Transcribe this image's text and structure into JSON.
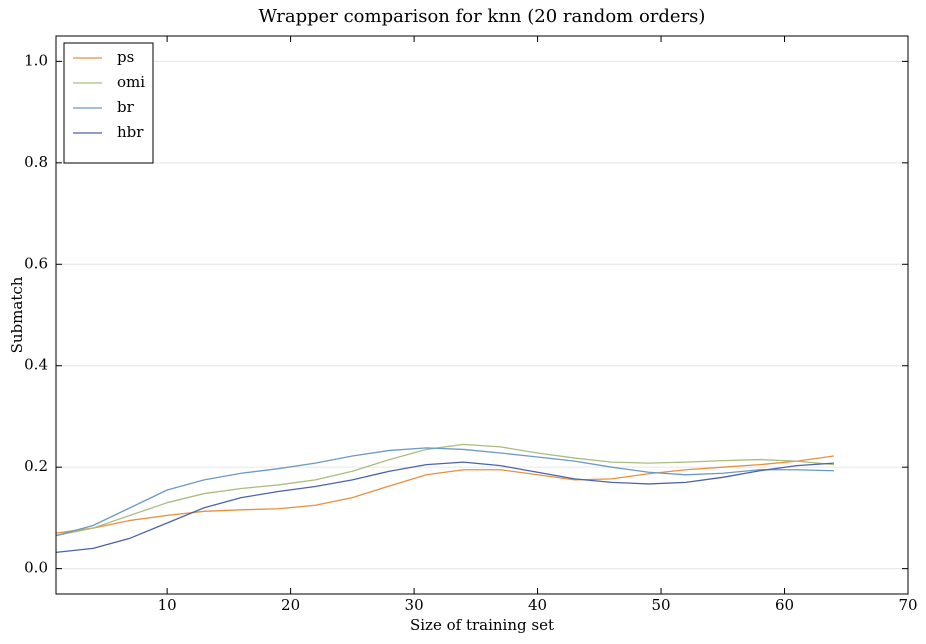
{
  "chart_data": {
    "type": "line",
    "title": "Wrapper comparison for knn (20 random orders)",
    "x_label": "Size of training set",
    "y_label": "Submatch",
    "x": [
      1,
      4,
      7,
      10,
      13,
      16,
      19,
      22,
      25,
      28,
      31,
      34,
      37,
      40,
      43,
      46,
      49,
      52,
      55,
      58,
      61,
      64
    ],
    "series": [
      {
        "name": "ps",
        "color": "#e8913d",
        "values": [
          0.07,
          0.08,
          0.095,
          0.105,
          0.113,
          0.116,
          0.118,
          0.125,
          0.14,
          0.163,
          0.185,
          0.195,
          0.195,
          0.185,
          0.175,
          0.177,
          0.187,
          0.195,
          0.2,
          0.205,
          0.212,
          0.222
        ]
      },
      {
        "name": "omi",
        "color": "#a9bd7e",
        "values": [
          0.065,
          0.08,
          0.105,
          0.13,
          0.148,
          0.158,
          0.165,
          0.175,
          0.192,
          0.215,
          0.235,
          0.245,
          0.24,
          0.228,
          0.218,
          0.21,
          0.208,
          0.21,
          0.213,
          0.215,
          0.212,
          0.205
        ]
      },
      {
        "name": "br",
        "color": "#6b9ac4",
        "values": [
          0.065,
          0.085,
          0.12,
          0.155,
          0.175,
          0.188,
          0.197,
          0.208,
          0.222,
          0.233,
          0.238,
          0.235,
          0.228,
          0.22,
          0.212,
          0.2,
          0.19,
          0.185,
          0.188,
          0.195,
          0.195,
          0.193
        ]
      },
      {
        "name": "hbr",
        "color": "#4c63a8",
        "values": [
          0.032,
          0.04,
          0.06,
          0.09,
          0.12,
          0.14,
          0.152,
          0.162,
          0.175,
          0.192,
          0.205,
          0.21,
          0.203,
          0.19,
          0.177,
          0.17,
          0.167,
          0.17,
          0.18,
          0.193,
          0.203,
          0.208
        ]
      }
    ],
    "xlim": [
      1,
      70
    ],
    "xticks": [
      10,
      20,
      30,
      40,
      50,
      60,
      70
    ],
    "ylim": [
      -0.05,
      1.05
    ],
    "yticks": [
      {
        "value": 0,
        "label": "0.0"
      },
      0.2,
      0.4,
      0.6,
      0.8,
      {
        "value": 1,
        "label": "1.0"
      }
    ],
    "grid": true,
    "legend": "upper-left"
  }
}
